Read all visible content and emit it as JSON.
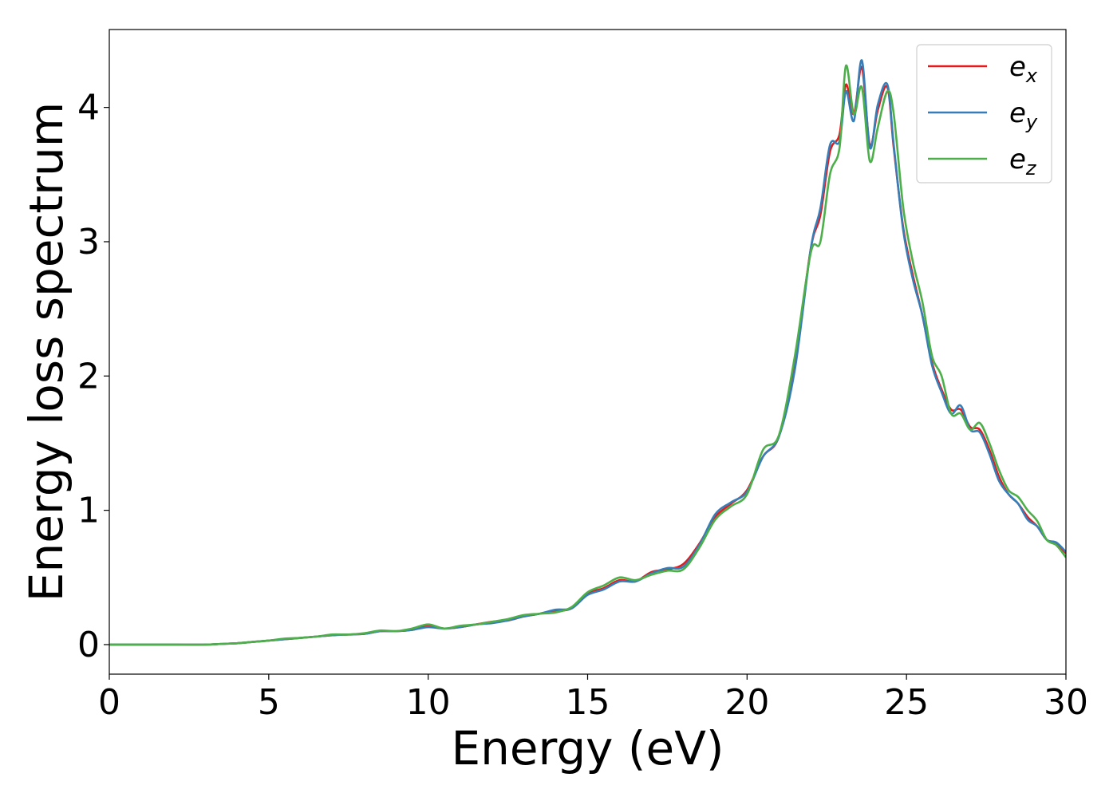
{
  "chart_data": {
    "type": "line",
    "title": "",
    "xlabel": "Energy (eV)",
    "ylabel": "Energy loss spectrum",
    "xlim": [
      0,
      30
    ],
    "ylim": [
      -0.22,
      4.58
    ],
    "xticks": [
      0,
      5,
      10,
      15,
      20,
      25,
      30
    ],
    "yticks": [
      0,
      1,
      2,
      3,
      4
    ],
    "grid": false,
    "legend_position": "top-right",
    "series": [
      {
        "name": "e",
        "subscript": "x",
        "color": "#e41a1c",
        "x": [
          0,
          1,
          2,
          3,
          3.5,
          4,
          4.5,
          5,
          5.5,
          6,
          6.5,
          7,
          7.5,
          8,
          8.5,
          9,
          9.5,
          10,
          10.5,
          11,
          11.5,
          12,
          12.5,
          13,
          13.5,
          14,
          14.5,
          15,
          15.5,
          16,
          16.5,
          17,
          17.5,
          18,
          18.5,
          19,
          19.5,
          20,
          20.5,
          21,
          21.5,
          22,
          22.3,
          22.6,
          22.9,
          23.1,
          23.35,
          23.6,
          23.85,
          24.1,
          24.4,
          24.6,
          24.9,
          25.2,
          25.5,
          25.8,
          26.1,
          26.4,
          26.7,
          27,
          27.3,
          27.6,
          27.9,
          28.2,
          28.5,
          28.8,
          29.1,
          29.4,
          29.7,
          30
        ],
        "y": [
          0,
          0,
          0,
          0,
          0.005,
          0.01,
          0.02,
          0.03,
          0.04,
          0.05,
          0.06,
          0.07,
          0.075,
          0.08,
          0.1,
          0.1,
          0.11,
          0.14,
          0.12,
          0.13,
          0.15,
          0.17,
          0.18,
          0.21,
          0.23,
          0.25,
          0.27,
          0.38,
          0.42,
          0.48,
          0.47,
          0.54,
          0.56,
          0.6,
          0.75,
          0.95,
          1.05,
          1.15,
          1.4,
          1.55,
          2.1,
          2.95,
          3.2,
          3.67,
          3.8,
          4.17,
          3.95,
          4.3,
          3.72,
          3.98,
          4.15,
          3.7,
          3.1,
          2.75,
          2.45,
          2.1,
          1.9,
          1.75,
          1.75,
          1.62,
          1.6,
          1.45,
          1.25,
          1.12,
          1.05,
          0.95,
          0.88,
          0.78,
          0.75,
          0.68
        ]
      },
      {
        "name": "e",
        "subscript": "y",
        "color": "#377eb8",
        "x": [
          0,
          1,
          2,
          3,
          3.5,
          4,
          4.5,
          5,
          5.5,
          6,
          6.5,
          7,
          7.5,
          8,
          8.5,
          9,
          9.5,
          10,
          10.5,
          11,
          11.5,
          12,
          12.5,
          13,
          13.5,
          14,
          14.5,
          15,
          15.5,
          16,
          16.5,
          17,
          17.5,
          18,
          18.5,
          19,
          19.5,
          20,
          20.5,
          21,
          21.5,
          22,
          22.3,
          22.6,
          22.9,
          23.1,
          23.35,
          23.6,
          23.85,
          24.1,
          24.4,
          24.6,
          24.9,
          25.2,
          25.5,
          25.8,
          26.1,
          26.4,
          26.7,
          27,
          27.3,
          27.6,
          27.9,
          28.2,
          28.5,
          28.8,
          29.1,
          29.4,
          29.7,
          30
        ],
        "y": [
          0,
          0,
          0,
          0,
          0.005,
          0.01,
          0.02,
          0.03,
          0.04,
          0.05,
          0.06,
          0.07,
          0.075,
          0.08,
          0.1,
          0.1,
          0.11,
          0.13,
          0.12,
          0.13,
          0.15,
          0.16,
          0.18,
          0.21,
          0.23,
          0.26,
          0.27,
          0.37,
          0.41,
          0.47,
          0.47,
          0.53,
          0.57,
          0.58,
          0.74,
          0.97,
          1.06,
          1.14,
          1.4,
          1.55,
          2.05,
          2.95,
          3.25,
          3.72,
          3.75,
          4.12,
          3.9,
          4.35,
          3.7,
          4.02,
          4.17,
          3.72,
          3.08,
          2.72,
          2.45,
          2.08,
          1.88,
          1.72,
          1.78,
          1.6,
          1.58,
          1.42,
          1.22,
          1.12,
          1.05,
          0.93,
          0.88,
          0.78,
          0.76,
          0.69
        ]
      },
      {
        "name": "e",
        "subscript": "z",
        "color": "#4daf4a",
        "x": [
          0,
          1,
          2,
          3,
          3.5,
          4,
          4.5,
          5,
          5.5,
          6,
          6.5,
          7,
          7.5,
          8,
          8.5,
          9,
          9.5,
          10,
          10.5,
          11,
          11.5,
          12,
          12.5,
          13,
          13.5,
          14,
          14.5,
          15,
          15.5,
          16,
          16.5,
          17,
          17.5,
          18,
          18.5,
          19,
          19.5,
          20,
          20.5,
          21,
          21.5,
          22,
          22.3,
          22.6,
          22.9,
          23.1,
          23.35,
          23.6,
          23.85,
          24.1,
          24.4,
          24.6,
          24.9,
          25.2,
          25.5,
          25.8,
          26.1,
          26.4,
          26.7,
          27,
          27.3,
          27.6,
          27.9,
          28.2,
          28.5,
          28.8,
          29.1,
          29.4,
          29.7,
          30
        ],
        "y": [
          0,
          0,
          0,
          0,
          0.005,
          0.01,
          0.02,
          0.03,
          0.045,
          0.05,
          0.06,
          0.075,
          0.075,
          0.085,
          0.105,
          0.1,
          0.12,
          0.15,
          0.12,
          0.14,
          0.15,
          0.17,
          0.19,
          0.22,
          0.23,
          0.24,
          0.28,
          0.39,
          0.44,
          0.5,
          0.48,
          0.52,
          0.55,
          0.56,
          0.72,
          0.93,
          1.03,
          1.12,
          1.45,
          1.56,
          2.15,
          2.92,
          3.0,
          3.5,
          3.7,
          4.31,
          3.95,
          4.15,
          3.6,
          3.85,
          4.12,
          3.95,
          3.25,
          2.85,
          2.55,
          2.15,
          2.0,
          1.72,
          1.72,
          1.6,
          1.65,
          1.5,
          1.3,
          1.15,
          1.1,
          1.0,
          0.92,
          0.78,
          0.74,
          0.65
        ]
      }
    ]
  }
}
